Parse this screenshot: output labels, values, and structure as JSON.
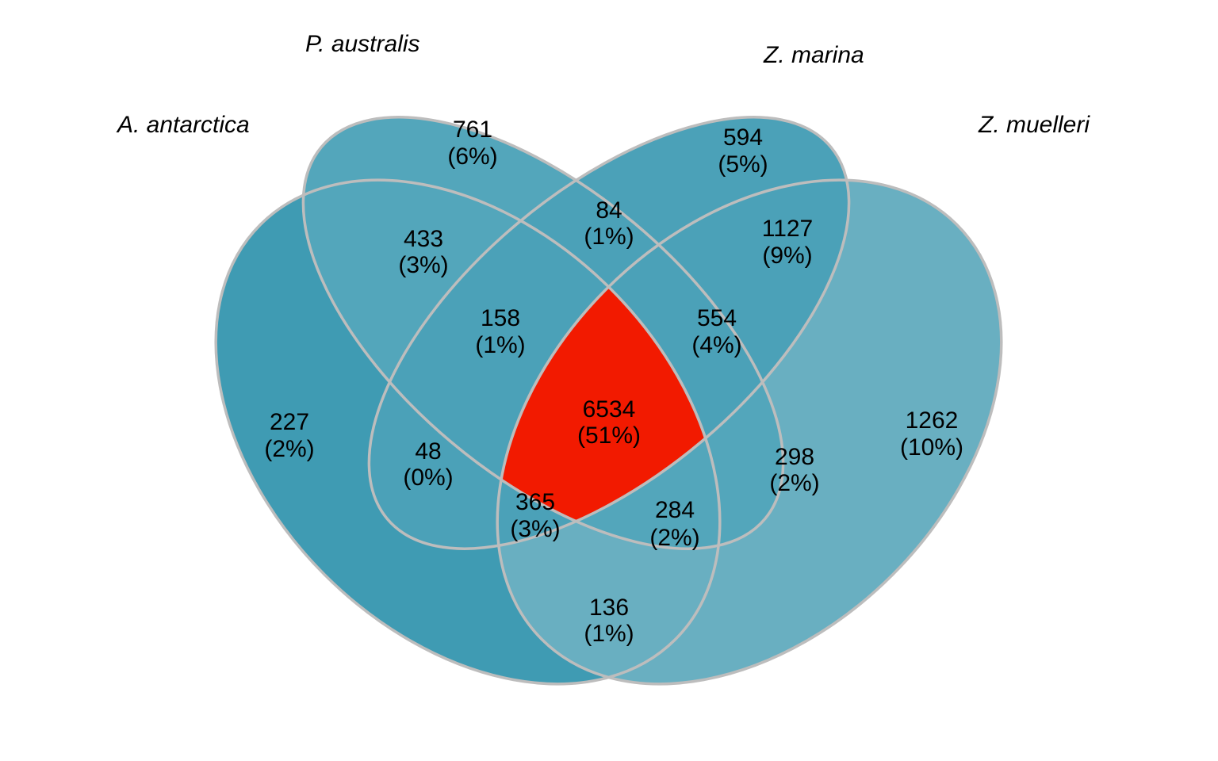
{
  "venn": {
    "sets": [
      {
        "name": "A. antarctica",
        "color": "#3f9bb3"
      },
      {
        "name": "P. australis",
        "color": "#53a6bb"
      },
      {
        "name": "Z. marina",
        "color": "#4ba1b8"
      },
      {
        "name": "Z. muelleri",
        "color": "#69afc1"
      }
    ],
    "outline_color": "#bdbdbd",
    "highlight_color": "#f21a00",
    "regions": [
      {
        "id": "aa-only",
        "count": "227",
        "pct": "(2%)"
      },
      {
        "id": "pa-only",
        "count": "761",
        "pct": "(6%)"
      },
      {
        "id": "zma-only",
        "count": "594",
        "pct": "(5%)"
      },
      {
        "id": "zmu-only",
        "count": "1262",
        "pct": "(10%)"
      },
      {
        "id": "aa-pa",
        "count": "433",
        "pct": "(3%)"
      },
      {
        "id": "pa-zma",
        "count": "84",
        "pct": "(1%)"
      },
      {
        "id": "zma-zmu",
        "count": "1127",
        "pct": "(9%)"
      },
      {
        "id": "aa-pa-zma",
        "count": "158",
        "pct": "(1%)"
      },
      {
        "id": "pa-zma-zmu",
        "count": "554",
        "pct": "(4%)"
      },
      {
        "id": "aa-zma",
        "count": "48",
        "pct": "(0%)"
      },
      {
        "id": "all-four",
        "count": "6534",
        "pct": "(51%)"
      },
      {
        "id": "pa-zmu",
        "count": "298",
        "pct": "(2%)"
      },
      {
        "id": "aa-zma-zmu",
        "count": "365",
        "pct": "(3%)"
      },
      {
        "id": "aa-pa-zmu",
        "count": "284",
        "pct": "(2%)"
      },
      {
        "id": "aa-zmu",
        "count": "136",
        "pct": "(1%)"
      }
    ]
  }
}
